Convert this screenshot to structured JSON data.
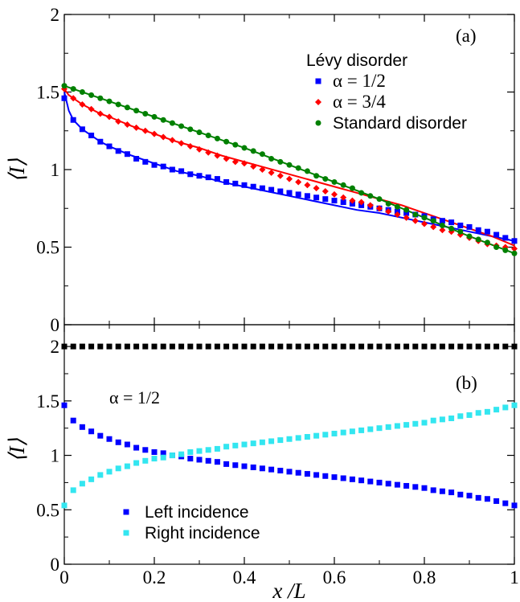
{
  "chart_data": [
    {
      "type": "scatter",
      "panel_label": "(a)",
      "ylabel": "⟨I⟩",
      "xlim": [
        0,
        1
      ],
      "ylim": [
        0,
        2
      ],
      "x_ticks": [
        "0",
        "0.2",
        "0.4",
        "0.6",
        "0.8",
        "1"
      ],
      "y_ticks": [
        "0",
        "0.5",
        "1",
        "1.5",
        "2"
      ],
      "y_tick_values": [
        0,
        0.5,
        1,
        1.5,
        2
      ],
      "legend_title": "Lévy disorder",
      "legend_placement": "top-right",
      "series": [
        {
          "name": "α = 1/2",
          "color": "#0000ff",
          "marker": "square",
          "x": [
            0.0,
            0.02,
            0.04,
            0.06,
            0.08,
            0.1,
            0.12,
            0.14,
            0.16,
            0.18,
            0.2,
            0.22,
            0.24,
            0.26,
            0.28,
            0.3,
            0.32,
            0.34,
            0.36,
            0.38,
            0.4,
            0.42,
            0.44,
            0.46,
            0.48,
            0.5,
            0.52,
            0.54,
            0.56,
            0.58,
            0.6,
            0.62,
            0.64,
            0.66,
            0.68,
            0.7,
            0.72,
            0.74,
            0.76,
            0.78,
            0.8,
            0.82,
            0.84,
            0.86,
            0.88,
            0.9,
            0.92,
            0.94,
            0.96,
            0.98,
            1.0
          ],
          "y": [
            1.46,
            1.32,
            1.26,
            1.22,
            1.18,
            1.15,
            1.12,
            1.1,
            1.07,
            1.05,
            1.03,
            1.02,
            1.0,
            0.99,
            0.97,
            0.96,
            0.95,
            0.94,
            0.92,
            0.91,
            0.9,
            0.89,
            0.88,
            0.87,
            0.86,
            0.85,
            0.84,
            0.83,
            0.82,
            0.81,
            0.8,
            0.79,
            0.78,
            0.77,
            0.76,
            0.75,
            0.74,
            0.73,
            0.72,
            0.71,
            0.7,
            0.68,
            0.67,
            0.66,
            0.64,
            0.63,
            0.61,
            0.6,
            0.58,
            0.56,
            0.54
          ]
        },
        {
          "name": "α = 3/4",
          "color": "#ff0000",
          "marker": "diamond",
          "x": [
            0.0,
            0.02,
            0.04,
            0.06,
            0.08,
            0.1,
            0.12,
            0.14,
            0.16,
            0.18,
            0.2,
            0.22,
            0.24,
            0.26,
            0.28,
            0.3,
            0.32,
            0.34,
            0.36,
            0.38,
            0.4,
            0.42,
            0.44,
            0.46,
            0.48,
            0.5,
            0.52,
            0.54,
            0.56,
            0.58,
            0.6,
            0.62,
            0.64,
            0.66,
            0.68,
            0.7,
            0.72,
            0.74,
            0.76,
            0.78,
            0.8,
            0.82,
            0.84,
            0.86,
            0.88,
            0.9,
            0.92,
            0.94,
            0.96,
            0.98,
            1.0
          ],
          "y": [
            1.52,
            1.46,
            1.42,
            1.39,
            1.36,
            1.34,
            1.31,
            1.29,
            1.27,
            1.25,
            1.23,
            1.21,
            1.19,
            1.17,
            1.15,
            1.13,
            1.11,
            1.09,
            1.07,
            1.05,
            1.04,
            1.02,
            1.0,
            0.98,
            0.96,
            0.94,
            0.92,
            0.9,
            0.88,
            0.86,
            0.84,
            0.82,
            0.8,
            0.79,
            0.77,
            0.75,
            0.73,
            0.71,
            0.69,
            0.67,
            0.65,
            0.63,
            0.61,
            0.6,
            0.58,
            0.56,
            0.54,
            0.52,
            0.51,
            0.5,
            0.49
          ]
        },
        {
          "name": "Standard disorder",
          "color": "#008000",
          "marker": "circle",
          "x": [
            0.0,
            0.02,
            0.04,
            0.06,
            0.08,
            0.1,
            0.12,
            0.14,
            0.16,
            0.18,
            0.2,
            0.22,
            0.24,
            0.26,
            0.28,
            0.3,
            0.32,
            0.34,
            0.36,
            0.38,
            0.4,
            0.42,
            0.44,
            0.46,
            0.48,
            0.5,
            0.52,
            0.54,
            0.56,
            0.58,
            0.6,
            0.62,
            0.64,
            0.66,
            0.68,
            0.7,
            0.72,
            0.74,
            0.76,
            0.78,
            0.8,
            0.82,
            0.84,
            0.86,
            0.88,
            0.9,
            0.92,
            0.94,
            0.96,
            0.98,
            1.0
          ],
          "y": [
            1.54,
            1.52,
            1.5,
            1.48,
            1.46,
            1.44,
            1.42,
            1.4,
            1.38,
            1.36,
            1.34,
            1.32,
            1.3,
            1.28,
            1.26,
            1.24,
            1.22,
            1.2,
            1.18,
            1.16,
            1.14,
            1.12,
            1.1,
            1.07,
            1.05,
            1.03,
            1.01,
            0.99,
            0.96,
            0.94,
            0.92,
            0.9,
            0.88,
            0.85,
            0.83,
            0.81,
            0.78,
            0.76,
            0.74,
            0.71,
            0.69,
            0.67,
            0.64,
            0.62,
            0.6,
            0.57,
            0.55,
            0.53,
            0.5,
            0.48,
            0.46
          ]
        }
      ],
      "curves": [
        {
          "color": "#0000ff",
          "x": [
            0.0,
            0.01,
            0.02,
            0.04,
            0.06,
            0.08,
            0.1,
            0.15,
            0.2,
            0.25,
            0.3,
            0.35,
            0.4,
            0.45,
            0.5,
            0.55,
            0.6,
            0.65,
            0.7,
            0.75,
            0.8,
            0.85,
            0.9,
            0.95,
            1.0
          ],
          "y": [
            1.5,
            1.38,
            1.32,
            1.26,
            1.22,
            1.18,
            1.15,
            1.09,
            1.04,
            0.99,
            0.96,
            0.92,
            0.89,
            0.86,
            0.83,
            0.8,
            0.77,
            0.74,
            0.72,
            0.69,
            0.66,
            0.63,
            0.6,
            0.57,
            0.54
          ]
        },
        {
          "color": "#ff0000",
          "x": [
            0.0,
            0.01,
            0.02,
            0.04,
            0.06,
            0.08,
            0.1,
            0.15,
            0.2,
            0.25,
            0.3,
            0.35,
            0.4,
            0.45,
            0.5,
            0.55,
            0.6,
            0.65,
            0.7,
            0.75,
            0.8,
            0.85,
            0.9,
            0.95,
            1.0
          ],
          "y": [
            1.52,
            1.48,
            1.46,
            1.42,
            1.39,
            1.36,
            1.34,
            1.28,
            1.23,
            1.18,
            1.14,
            1.09,
            1.05,
            1.01,
            0.97,
            0.93,
            0.89,
            0.85,
            0.81,
            0.77,
            0.72,
            0.67,
            0.62,
            0.57,
            0.51
          ]
        },
        {
          "color": "#008000",
          "x": [
            0.0,
            0.1,
            0.2,
            0.3,
            0.4,
            0.5,
            0.6,
            0.7,
            0.8,
            0.9,
            1.0
          ],
          "y": [
            1.54,
            1.44,
            1.34,
            1.24,
            1.14,
            1.03,
            0.92,
            0.81,
            0.69,
            0.57,
            0.46
          ]
        }
      ]
    },
    {
      "type": "scatter",
      "panel_label": "(b)",
      "annotation": "α = 1/2",
      "xlabel": "x /L",
      "ylabel": "⟨I⟩",
      "xlim": [
        0,
        1
      ],
      "ylim": [
        0,
        2.2
      ],
      "x_ticks": [
        "0",
        "0.2",
        "0.4",
        "0.6",
        "0.8",
        "1"
      ],
      "y_ticks": [
        "0",
        "0.5",
        "1",
        "1.5",
        "2"
      ],
      "y_tick_values": [
        0,
        0.5,
        1,
        1.5,
        2
      ],
      "legend_placement": "bottom-left",
      "series": [
        {
          "name": "Left incidence",
          "color": "#0000ff",
          "marker": "square",
          "x": [
            0.0,
            0.02,
            0.04,
            0.06,
            0.08,
            0.1,
            0.12,
            0.14,
            0.16,
            0.18,
            0.2,
            0.22,
            0.24,
            0.26,
            0.28,
            0.3,
            0.32,
            0.34,
            0.36,
            0.38,
            0.4,
            0.42,
            0.44,
            0.46,
            0.48,
            0.5,
            0.52,
            0.54,
            0.56,
            0.58,
            0.6,
            0.62,
            0.64,
            0.66,
            0.68,
            0.7,
            0.72,
            0.74,
            0.76,
            0.78,
            0.8,
            0.82,
            0.84,
            0.86,
            0.88,
            0.9,
            0.92,
            0.94,
            0.96,
            0.98,
            1.0
          ],
          "y": [
            1.46,
            1.32,
            1.26,
            1.22,
            1.18,
            1.15,
            1.12,
            1.1,
            1.07,
            1.05,
            1.03,
            1.02,
            1.0,
            0.99,
            0.97,
            0.96,
            0.95,
            0.94,
            0.92,
            0.91,
            0.9,
            0.89,
            0.88,
            0.87,
            0.86,
            0.85,
            0.84,
            0.83,
            0.82,
            0.81,
            0.8,
            0.79,
            0.78,
            0.77,
            0.76,
            0.75,
            0.74,
            0.73,
            0.72,
            0.71,
            0.7,
            0.68,
            0.67,
            0.66,
            0.64,
            0.63,
            0.61,
            0.6,
            0.58,
            0.56,
            0.54
          ]
        },
        {
          "name": "Right incidence",
          "color": "#33e6f0",
          "marker": "square",
          "x": [
            0.0,
            0.02,
            0.04,
            0.06,
            0.08,
            0.1,
            0.12,
            0.14,
            0.16,
            0.18,
            0.2,
            0.22,
            0.24,
            0.26,
            0.28,
            0.3,
            0.32,
            0.34,
            0.36,
            0.38,
            0.4,
            0.42,
            0.44,
            0.46,
            0.48,
            0.5,
            0.52,
            0.54,
            0.56,
            0.58,
            0.6,
            0.62,
            0.64,
            0.66,
            0.68,
            0.7,
            0.72,
            0.74,
            0.76,
            0.78,
            0.8,
            0.82,
            0.84,
            0.86,
            0.88,
            0.9,
            0.92,
            0.94,
            0.96,
            0.98,
            1.0
          ],
          "y": [
            0.54,
            0.68,
            0.74,
            0.78,
            0.82,
            0.85,
            0.88,
            0.9,
            0.93,
            0.95,
            0.97,
            0.98,
            1.0,
            1.01,
            1.03,
            1.04,
            1.05,
            1.06,
            1.08,
            1.09,
            1.1,
            1.11,
            1.12,
            1.13,
            1.14,
            1.15,
            1.16,
            1.17,
            1.18,
            1.19,
            1.2,
            1.21,
            1.22,
            1.23,
            1.24,
            1.25,
            1.26,
            1.27,
            1.28,
            1.29,
            1.3,
            1.32,
            1.33,
            1.34,
            1.36,
            1.37,
            1.39,
            1.4,
            1.42,
            1.44,
            1.46
          ]
        },
        {
          "name": "",
          "color": "#000000",
          "marker": "square",
          "x": [
            0.0,
            0.02,
            0.04,
            0.06,
            0.08,
            0.1,
            0.12,
            0.14,
            0.16,
            0.18,
            0.2,
            0.22,
            0.24,
            0.26,
            0.28,
            0.3,
            0.32,
            0.34,
            0.36,
            0.38,
            0.4,
            0.42,
            0.44,
            0.46,
            0.48,
            0.5,
            0.52,
            0.54,
            0.56,
            0.58,
            0.6,
            0.62,
            0.64,
            0.66,
            0.68,
            0.7,
            0.72,
            0.74,
            0.76,
            0.78,
            0.8,
            0.82,
            0.84,
            0.86,
            0.88,
            0.9,
            0.92,
            0.94,
            0.96,
            0.98,
            1.0
          ],
          "y": [
            2,
            2,
            2,
            2,
            2,
            2,
            2,
            2,
            2,
            2,
            2,
            2,
            2,
            2,
            2,
            2,
            2,
            2,
            2,
            2,
            2,
            2,
            2,
            2,
            2,
            2,
            2,
            2,
            2,
            2,
            2,
            2,
            2,
            2,
            2,
            2,
            2,
            2,
            2,
            2,
            2,
            2,
            2,
            2,
            2,
            2,
            2,
            2,
            2,
            2,
            2
          ]
        }
      ]
    }
  ]
}
